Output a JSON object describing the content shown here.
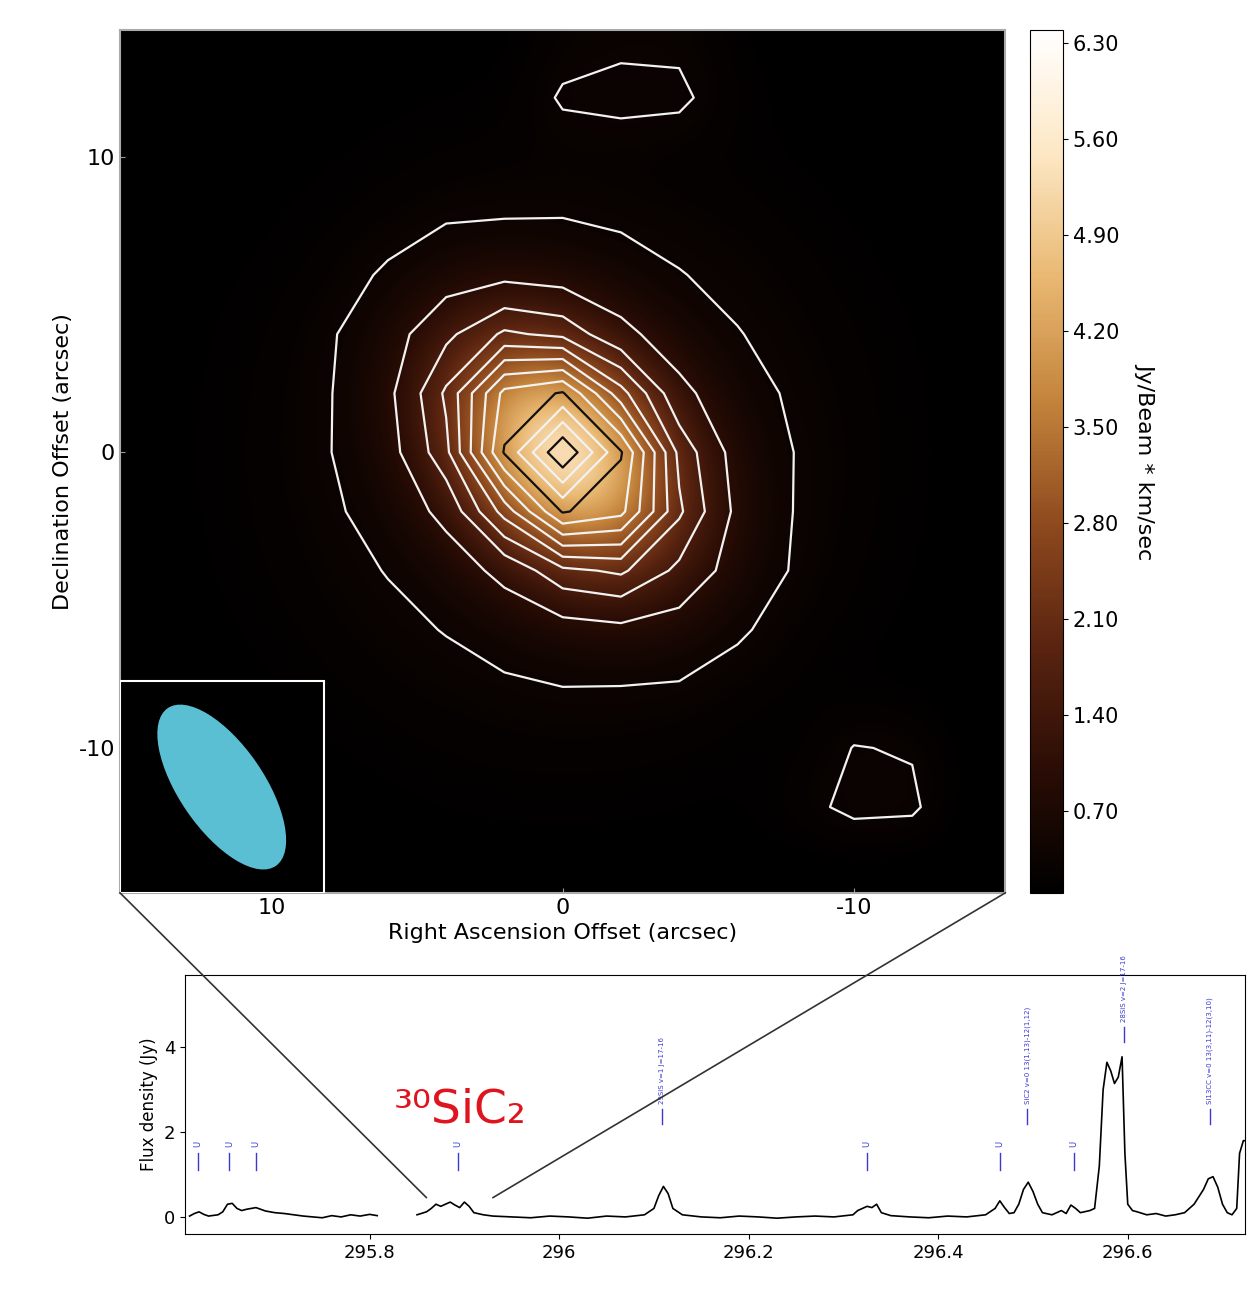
{
  "chart_data": [
    {
      "type": "contour",
      "xlabel": "Right Ascension Offset (arcsec)",
      "ylabel": "Declination Offset (arcsec)",
      "x": [
        -14,
        -12,
        -10,
        -8,
        -6,
        -4,
        -2,
        0,
        2,
        4,
        6,
        8,
        10,
        12,
        14
      ],
      "y": [
        -14,
        -12,
        -10,
        -8,
        -6,
        -4,
        -2,
        0,
        2,
        4,
        6,
        8,
        10,
        12,
        14
      ],
      "cells": [
        [
          0.05,
          0.06,
          0.07,
          0.08,
          0.1,
          0.1,
          0.11,
          0.12,
          0.11,
          0.1,
          0.1,
          0.08,
          0.07,
          0.06,
          0.05
        ],
        [
          0.06,
          0.4,
          0.42,
          0.25,
          0.13,
          0.15,
          0.16,
          0.16,
          0.16,
          0.15,
          0.13,
          0.11,
          0.09,
          0.07,
          0.06
        ],
        [
          0.07,
          0.33,
          0.36,
          0.14,
          0.17,
          0.2,
          0.22,
          0.23,
          0.22,
          0.2,
          0.17,
          0.14,
          0.11,
          0.09,
          0.07
        ],
        [
          0.08,
          0.11,
          0.14,
          0.18,
          0.23,
          0.31,
          0.33,
          0.34,
          0.3,
          0.27,
          0.23,
          0.18,
          0.14,
          0.11,
          0.08
        ],
        [
          0.1,
          0.13,
          0.17,
          0.23,
          0.39,
          0.62,
          0.75,
          0.64,
          0.48,
          0.36,
          0.29,
          0.23,
          0.17,
          0.13,
          0.1
        ],
        [
          0.1,
          0.15,
          0.2,
          0.31,
          0.62,
          1.37,
          2.09,
          1.87,
          1.07,
          0.57,
          0.36,
          0.27,
          0.2,
          0.15,
          0.1
        ],
        [
          0.11,
          0.16,
          0.22,
          0.33,
          0.75,
          2.09,
          4.15,
          4.55,
          2.7,
          1.07,
          0.48,
          0.3,
          0.22,
          0.16,
          0.11
        ],
        [
          0.12,
          0.16,
          0.23,
          0.34,
          0.64,
          1.87,
          4.55,
          6.5,
          4.55,
          1.87,
          0.64,
          0.34,
          0.23,
          0.16,
          0.12
        ],
        [
          0.11,
          0.16,
          0.22,
          0.3,
          0.48,
          1.07,
          2.7,
          4.55,
          4.15,
          2.09,
          0.75,
          0.33,
          0.22,
          0.16,
          0.11
        ],
        [
          0.1,
          0.15,
          0.2,
          0.27,
          0.36,
          0.57,
          1.07,
          1.87,
          2.09,
          1.37,
          0.62,
          0.31,
          0.2,
          0.15,
          0.1
        ],
        [
          0.1,
          0.13,
          0.17,
          0.23,
          0.29,
          0.36,
          0.48,
          0.64,
          0.75,
          0.62,
          0.39,
          0.23,
          0.17,
          0.13,
          0.1
        ],
        [
          0.08,
          0.11,
          0.14,
          0.18,
          0.23,
          0.27,
          0.3,
          0.34,
          0.33,
          0.31,
          0.23,
          0.18,
          0.14,
          0.11,
          0.08
        ],
        [
          0.07,
          0.09,
          0.11,
          0.14,
          0.17,
          0.2,
          0.22,
          0.23,
          0.22,
          0.2,
          0.17,
          0.14,
          0.11,
          0.09,
          0.07
        ],
        [
          0.06,
          0.07,
          0.09,
          0.11,
          0.2,
          0.4,
          0.42,
          0.38,
          0.16,
          0.15,
          0.13,
          0.11,
          0.09,
          0.07,
          0.06
        ],
        [
          0.05,
          0.06,
          0.07,
          0.08,
          0.15,
          0.3,
          0.3,
          0.25,
          0.11,
          0.1,
          0.1,
          0.08,
          0.07,
          0.06,
          0.05
        ]
      ],
      "xlim": [
        15.2,
        -15.2
      ],
      "ylim": [
        -14.9,
        14.3
      ],
      "xticks": [
        10,
        0,
        -10
      ],
      "yticks": [
        -10,
        0,
        10
      ],
      "contour_levels": [
        0.35,
        0.9,
        1.5,
        2.0,
        2.5,
        3.0,
        3.5,
        4.0,
        4.5,
        5.0,
        5.5,
        6.0
      ],
      "colors": [
        "#f2f2f2",
        "#f2f2f2",
        "#f2f2f2",
        "#f2f2f2",
        "#f2f2f2",
        "#f2f2f2",
        "#f2f2f2",
        "#f2f2f2",
        "#111111",
        "#f2f2f2",
        "#f2f2f2",
        "#111111"
      ],
      "colorbar_range": [
        0.1,
        6.4
      ],
      "colorbar_ticks": [
        {
          "value": 0.7,
          "label": "0.70"
        },
        {
          "value": 1.4,
          "label": "1.40"
        },
        {
          "value": 2.1,
          "label": "2.10"
        },
        {
          "value": 2.8,
          "label": "2.80"
        },
        {
          "value": 3.5,
          "label": "3.50"
        },
        {
          "value": 4.2,
          "label": "4.20"
        },
        {
          "value": 4.9,
          "label": "4.90"
        },
        {
          "value": 5.6,
          "label": "5.60"
        },
        {
          "value": 6.3,
          "label": "6.30"
        }
      ],
      "colorbar_label": "Jy/Beam * km/sec",
      "beam": {
        "major": 6.5,
        "minor": 2.9,
        "pa": 35
      }
    },
    {
      "type": "line",
      "ylabel": "Flux density (Jy)",
      "color": "#000000",
      "x": [
        295.61,
        295.615,
        295.62,
        295.625,
        295.63,
        295.64,
        295.645,
        295.65,
        295.655,
        295.66,
        295.665,
        295.67,
        295.675,
        295.68,
        295.685,
        295.69,
        295.7,
        295.71,
        295.72,
        295.73,
        295.74,
        295.75,
        295.76,
        295.77,
        295.78,
        295.79,
        295.8,
        295.808,
        295.83,
        295.85,
        295.86,
        295.865,
        295.87,
        295.875,
        295.88,
        295.885,
        295.89,
        295.895,
        295.9,
        295.905,
        295.91,
        295.92,
        295.93,
        295.95,
        295.97,
        295.99,
        296.01,
        296.03,
        296.05,
        296.07,
        296.09,
        296.1,
        296.105,
        296.11,
        296.115,
        296.12,
        296.13,
        296.15,
        296.17,
        296.19,
        296.21,
        296.23,
        296.25,
        296.27,
        296.29,
        296.31,
        296.315,
        296.32,
        296.325,
        296.33,
        296.335,
        296.34,
        296.35,
        296.37,
        296.39,
        296.41,
        296.43,
        296.45,
        296.46,
        296.465,
        296.47,
        296.475,
        296.48,
        296.485,
        296.49,
        296.495,
        296.5,
        296.505,
        296.51,
        296.52,
        296.53,
        296.535,
        296.54,
        296.545,
        296.55,
        296.56,
        296.565,
        296.57,
        296.574,
        296.578,
        296.582,
        296.586,
        296.59,
        296.594,
        296.597,
        296.6,
        296.605,
        296.61,
        296.62,
        296.63,
        296.64,
        296.65,
        296.66,
        296.67,
        296.68,
        296.685,
        296.69,
        296.695,
        296.7,
        296.705,
        296.71,
        296.715,
        296.718,
        296.722,
        296.724
      ],
      "values": [
        0.02,
        0.08,
        0.12,
        0.06,
        0.02,
        0.05,
        0.12,
        0.3,
        0.32,
        0.2,
        0.15,
        0.18,
        0.2,
        0.22,
        0.18,
        0.14,
        0.1,
        0.08,
        0.05,
        0.02,
        0.0,
        -0.02,
        0.03,
        0.0,
        0.05,
        0.02,
        0.06,
        0.03,
        null,
        0.05,
        0.12,
        0.2,
        0.3,
        0.25,
        0.3,
        0.35,
        0.28,
        0.22,
        0.35,
        0.25,
        0.1,
        0.05,
        0.02,
        0.0,
        -0.02,
        0.02,
        0.0,
        -0.03,
        0.02,
        0.0,
        0.05,
        0.2,
        0.5,
        0.72,
        0.55,
        0.2,
        0.05,
        0.0,
        -0.02,
        0.02,
        0.0,
        -0.03,
        0.0,
        0.02,
        0.0,
        0.05,
        0.15,
        0.2,
        0.25,
        0.22,
        0.3,
        0.1,
        0.03,
        0.0,
        -0.02,
        0.02,
        0.0,
        0.05,
        0.2,
        0.38,
        0.22,
        0.08,
        0.1,
        0.3,
        0.65,
        0.82,
        0.6,
        0.3,
        0.1,
        0.05,
        0.15,
        0.08,
        0.28,
        0.2,
        0.1,
        0.15,
        0.2,
        1.2,
        3.0,
        3.65,
        3.45,
        3.15,
        3.3,
        3.78,
        1.5,
        0.3,
        0.15,
        0.12,
        0.05,
        0.08,
        0.02,
        0.05,
        0.1,
        0.3,
        0.65,
        0.9,
        0.95,
        0.7,
        0.3,
        0.1,
        0.05,
        0.2,
        1.5,
        1.8,
        1.8
      ],
      "xlim": [
        295.605,
        296.724
      ],
      "ylim": [
        -0.4,
        5.7
      ],
      "xticks": [
        295.8,
        296,
        296.2,
        296.4,
        296.6
      ],
      "yticks": [
        0,
        2,
        4
      ],
      "line_labels": [
        {
          "x": 295.619,
          "text": "U"
        },
        {
          "x": 295.652,
          "text": "U"
        },
        {
          "x": 295.68,
          "text": "U"
        },
        {
          "x": 295.893,
          "text": "U"
        },
        {
          "x": 296.109,
          "text": "29SiS v=1 J=17-16"
        },
        {
          "x": 296.325,
          "text": "U"
        },
        {
          "x": 296.465,
          "text": "U"
        },
        {
          "x": 296.494,
          "text": "SiC2 v=0 13(1,13)-12(1,12)"
        },
        {
          "x": 296.543,
          "text": "U"
        },
        {
          "x": 296.596,
          "text": "28SiS v=2 J=17-16"
        },
        {
          "x": 296.687,
          "text": "Si13CC v=0 13(3,11)-12(3,10)"
        }
      ],
      "annotations": [
        {
          "text": "³⁰SiC₂",
          "x_range": [
            295.86,
            295.93
          ]
        }
      ]
    }
  ]
}
